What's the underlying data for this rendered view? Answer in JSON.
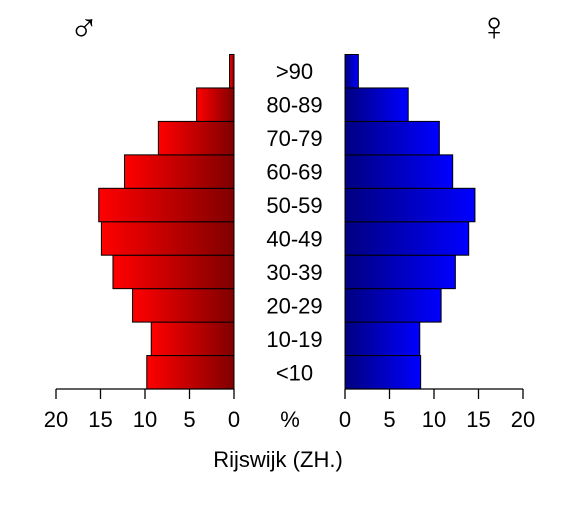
{
  "chart_data": {
    "type": "bar",
    "orientation": "horizontal",
    "subtype": "population-pyramid",
    "title": "",
    "xlabel": "Rijswijk (ZH.)",
    "center_label": "%",
    "categories": [
      "<10",
      "10-19",
      "20-29",
      "30-39",
      "40-49",
      "50-59",
      "60-69",
      "70-79",
      "80-89",
      ">90"
    ],
    "series": [
      {
        "name": "male",
        "side": "left",
        "symbol": "♂",
        "color_light": "#ff0000",
        "color_dark": "#800000",
        "values": [
          9.8,
          9.3,
          11.4,
          13.6,
          14.9,
          15.2,
          12.3,
          8.5,
          4.2,
          0.5
        ]
      },
      {
        "name": "female",
        "side": "right",
        "symbol": "♀",
        "color_light": "#0000ff",
        "color_dark": "#000080",
        "values": [
          8.5,
          8.4,
          10.8,
          12.4,
          13.9,
          14.6,
          12.1,
          10.6,
          7.1,
          1.5
        ]
      }
    ],
    "xlim": [
      0,
      20
    ],
    "ticks": [
      "0",
      "5",
      "10",
      "15",
      "20"
    ],
    "grid": false,
    "legend": "none"
  }
}
